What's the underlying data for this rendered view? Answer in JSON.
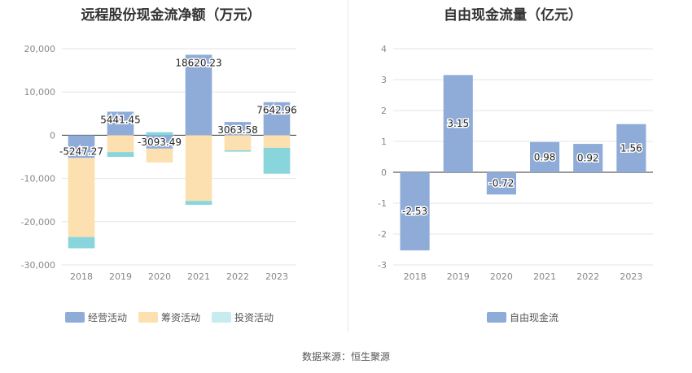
{
  "titles": {
    "left": "远程股份现金流净额（万元）",
    "right": "自由现金流量（亿元）"
  },
  "source": "数据来源：恒生聚源",
  "colors": {
    "operating": "#8facd9",
    "financing": "#fde0b0",
    "investing": "#88d6dc",
    "free_cf": "#8facd9",
    "grid": "#e6e6e6",
    "axis": "#333333"
  },
  "chart_data": [
    {
      "type": "bar",
      "stacked": true,
      "title": "远程股份现金流净额（万元）",
      "categories": [
        "2018",
        "2019",
        "2020",
        "2021",
        "2022",
        "2023"
      ],
      "series": [
        {
          "name": "经营活动",
          "values": [
            -5247.27,
            5441.45,
            -3093.49,
            18620.23,
            3063.58,
            7642.96
          ]
        },
        {
          "name": "筹资活动",
          "values": [
            -18300,
            -3900,
            -3200,
            -15200,
            -3500,
            -2900
          ]
        },
        {
          "name": "投资活动",
          "values": [
            -2600,
            -1100,
            700,
            -900,
            -300,
            -6000
          ]
        }
      ],
      "data_labels": [
        "-5247.27",
        "5441.45",
        "-3093.49",
        "18620.23",
        "3063.58",
        "7642.96"
      ],
      "ylim": [
        -30000,
        20000
      ],
      "yticks": [
        20000,
        10000,
        0,
        -10000,
        -20000,
        -30000
      ],
      "ytick_labels": [
        "20,000",
        "10,000",
        "0",
        "-10,000",
        "-20,000",
        "-30,000"
      ],
      "legend": "bottom"
    },
    {
      "type": "bar",
      "title": "自由现金流量（亿元）",
      "categories": [
        "2018",
        "2019",
        "2020",
        "2021",
        "2022",
        "2023"
      ],
      "series": [
        {
          "name": "自由现金流",
          "values": [
            -2.53,
            3.15,
            -0.72,
            0.98,
            0.92,
            1.56
          ]
        }
      ],
      "data_labels": [
        "-2.53",
        "3.15",
        "-0.72",
        "0.98",
        "0.92",
        "1.56"
      ],
      "ylim": [
        -3,
        4
      ],
      "yticks": [
        4,
        3,
        2,
        1,
        0,
        -1,
        -2,
        -3
      ],
      "ytick_labels": [
        "4",
        "3",
        "2",
        "1",
        "0",
        "-1",
        "-2",
        "-3"
      ],
      "legend": "bottom"
    }
  ]
}
